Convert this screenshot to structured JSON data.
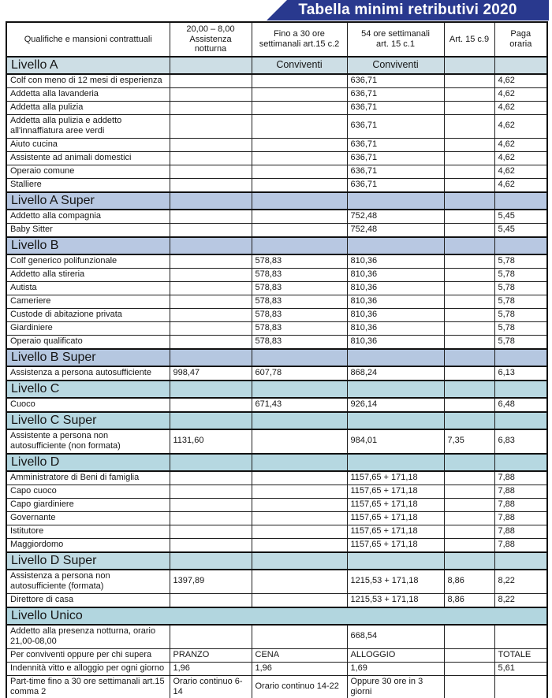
{
  "title": "Tabella minimi retributivi 2020",
  "theme": {
    "banner_bg": "#29398e",
    "banner_text": "#ffffff",
    "border_color": "#1f1f1f"
  },
  "columns": [
    {
      "label": "Qualifiche e mansioni contrattuali"
    },
    {
      "label": "20,00 – 8,00\nAssistenza\nnotturna"
    },
    {
      "label": "Fino a 30 ore\nsettimanali art.15 c.2"
    },
    {
      "label": "54 ore settimanali\nart. 15 c.1"
    },
    {
      "label": "Art. 15 c.9"
    },
    {
      "label": "Paga\noraria"
    }
  ],
  "sections": [
    {
      "name": "Livello A",
      "color": "#cdcfe0e5",
      "bg": "#cddee5",
      "extras": [
        "",
        "Conviventi",
        "Conviventi",
        "",
        ""
      ],
      "rows": [
        [
          "Colf con meno di 12 mesi di esperienza",
          "",
          "",
          "636,71",
          "",
          "4,62"
        ],
        [
          "Addetta alla lavanderia",
          "",
          "",
          "636,71",
          "",
          "4,62"
        ],
        [
          "Addetta alla pulizia",
          "",
          "",
          "636,71",
          "",
          "4,62"
        ],
        [
          "Addetta alla pulizia e addetto all'innaffiatura aree verdi",
          "",
          "",
          "636,71",
          "",
          "4,62"
        ],
        [
          "Aiuto cucina",
          "",
          "",
          "636,71",
          "",
          "4,62"
        ],
        [
          "Assistente ad animali domestici",
          "",
          "",
          "636,71",
          "",
          "4,62"
        ],
        [
          "Operaio comune",
          "",
          "",
          "636,71",
          "",
          "4,62"
        ],
        [
          "Stalliere",
          "",
          "",
          "636,71",
          "",
          "4,62"
        ]
      ]
    },
    {
      "name": "Livello A Super",
      "bg": "#b8c8e2",
      "extras": [
        "",
        "",
        "",
        "",
        ""
      ],
      "rows": [
        [
          "Addetto alla compagnia",
          "",
          "",
          "752,48",
          "",
          "5,45"
        ],
        [
          "Baby Sitter",
          "",
          "",
          "752,48",
          "",
          "5,45"
        ]
      ]
    },
    {
      "name": "Livello B",
      "bg": "#b8c8e2",
      "extras": [
        "",
        "",
        "",
        "",
        ""
      ],
      "rows": [
        [
          "Colf generico polifunzionale",
          "",
          "578,83",
          "810,36",
          "",
          "5,78"
        ],
        [
          "Addetto alla stireria",
          "",
          "578,83",
          "810,36",
          "",
          "5,78"
        ],
        [
          "Autista",
          "",
          "578,83",
          "810,36",
          "",
          "5,78"
        ],
        [
          "Cameriere",
          "",
          "578,83",
          "810,36",
          "",
          "5,78"
        ],
        [
          "Custode di abitazione privata",
          "",
          "578,83",
          "810,36",
          "",
          "5,78"
        ],
        [
          "Giardiniere",
          "",
          "578,83",
          "810,36",
          "",
          "5,78"
        ],
        [
          "Operaio qualificato",
          "",
          "578,83",
          "810,36",
          "",
          "5,78"
        ]
      ]
    },
    {
      "name": "Livello B Super",
      "bg": "#b5c7e0",
      "extras": [
        "",
        "",
        "",
        "",
        ""
      ],
      "rows": [
        [
          "Assistenza a persona autosufficiente",
          "998,47",
          "607,78",
          "868,24",
          "",
          "6,13"
        ]
      ]
    },
    {
      "name": "Livello C",
      "bg": "#b9d9e2",
      "extras": [
        "",
        "",
        "",
        "",
        ""
      ],
      "rows": [
        [
          "Cuoco",
          "",
          "671,43",
          "926,14",
          "",
          "6,48"
        ]
      ]
    },
    {
      "name": "Livello C Super",
      "bg": "#b6d8e1",
      "extras": [
        "",
        "",
        "",
        "",
        ""
      ],
      "rows": [
        [
          "Assistente a persona non autosufficiente (non formata)",
          "1131,60",
          "",
          "984,01",
          "7,35",
          "6,83"
        ]
      ]
    },
    {
      "name": "Livello D",
      "bg": "#b6d8e1",
      "extras": [
        "",
        "",
        "",
        "",
        ""
      ],
      "rows": [
        [
          "Amministratore di Beni di famiglia",
          "",
          "",
          "1157,65 + 171,18",
          "",
          "7,88"
        ],
        [
          "Capo cuoco",
          "",
          "",
          "1157,65 + 171,18",
          "",
          "7,88"
        ],
        [
          "Capo giardiniere",
          "",
          "",
          "1157,65 + 171,18",
          "",
          "7,88"
        ],
        [
          "Governante",
          "",
          "",
          "1157,65 + 171,18",
          "",
          "7,88"
        ],
        [
          "Istitutore",
          "",
          "",
          "1157,65 + 171,18",
          "",
          "7,88"
        ],
        [
          "Maggiordomo",
          "",
          "",
          "1157,65 + 171,18",
          "",
          "7,88"
        ]
      ]
    },
    {
      "name": "Livello D Super",
      "bg": "#c0dbe3",
      "extras": [
        "",
        "",
        "",
        "",
        ""
      ],
      "rows": [
        [
          "Assistenza a persona non autosufficiente (formata)",
          "1397,89",
          "",
          "1215,53 + 171,18",
          "8,86",
          "8,22"
        ],
        [
          "Direttore di casa",
          "",
          "",
          "1215,53 + 171,18",
          "8,86",
          "8,22"
        ]
      ]
    },
    {
      "name": "Livello Unico",
      "bg": "#b2d6df",
      "merged": true,
      "rows": [
        [
          "Addetto alla presenza notturna, orario 21,00-08,00",
          "",
          "",
          "668,54",
          "",
          ""
        ],
        [
          "Per conviventi oppure per chi supera",
          "PRANZO",
          "CENA",
          "ALLOGGIO",
          "",
          "TOTALE"
        ],
        [
          "Indennità vitto e alloggio per ogni giorno",
          "1,96",
          "1,96",
          "1,69",
          "",
          "5,61"
        ],
        [
          "Part-time fino a 30 ore settimanali art.15 comma 2",
          "Orario continuo 6-14",
          "Orario continuo 14-22",
          "Oppure 30 ore in 3 giorni",
          "",
          ""
        ]
      ]
    }
  ]
}
